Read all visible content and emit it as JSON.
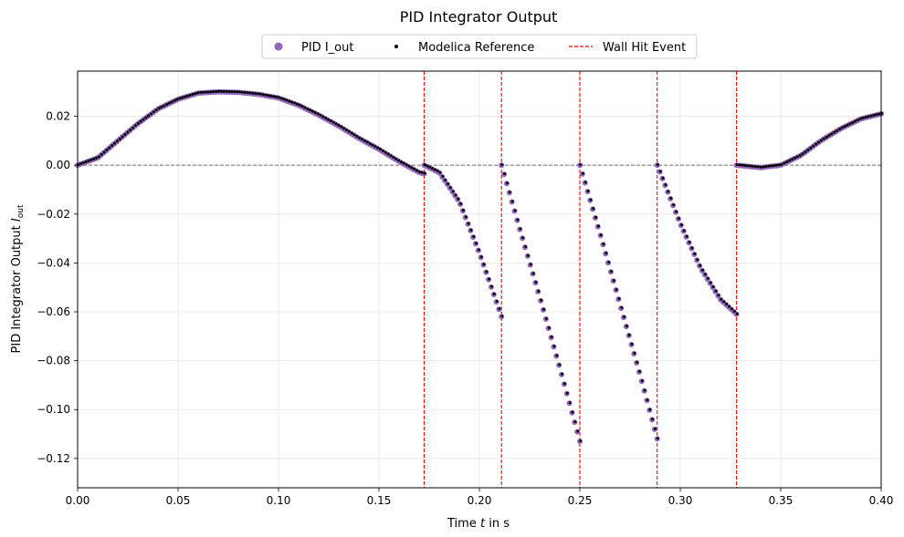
{
  "chart_data": {
    "type": "scatter",
    "title": "PID Integrator Output",
    "xlabel_prefix": "Time ",
    "xlabel_var": "t",
    "xlabel_suffix": " in s",
    "ylabel_prefix": "PID Integrator Output ",
    "ylabel_var": "I",
    "ylabel_sub": "out",
    "xlim": [
      0,
      0.4
    ],
    "ylim": [
      -0.132,
      0.0385
    ],
    "xticks": [
      0,
      0.05,
      0.1,
      0.15,
      0.2,
      0.25,
      0.3,
      0.35,
      0.4
    ],
    "xtick_labels": [
      "0.00",
      "0.05",
      "0.10",
      "0.15",
      "0.20",
      "0.25",
      "0.30",
      "0.35",
      "0.40"
    ],
    "yticks": [
      0.02,
      0.0,
      -0.02,
      -0.04,
      -0.06,
      -0.08,
      -0.1,
      -0.12
    ],
    "ytick_labels": [
      "0.02",
      "0.00",
      "−0.02",
      "−0.04",
      "−0.06",
      "−0.08",
      "−0.10",
      "−0.12"
    ],
    "grid": true,
    "legend_position": "top-center",
    "zero_line": 0,
    "series": [
      {
        "name": "PID I_out",
        "color": "#9467bd",
        "marker": "circle-large",
        "segments": [
          {
            "x": [
              0.0,
              0.01,
              0.02,
              0.03,
              0.04,
              0.05,
              0.06,
              0.07,
              0.08,
              0.09,
              0.1,
              0.11,
              0.12,
              0.13,
              0.14,
              0.15,
              0.16,
              0.17,
              0.1725
            ],
            "y": [
              0.0,
              0.003,
              0.01,
              0.017,
              0.023,
              0.027,
              0.0295,
              0.03,
              0.0298,
              0.029,
              0.0275,
              0.0245,
              0.0205,
              0.016,
              0.011,
              0.0065,
              0.0015,
              -0.003,
              -0.0035
            ]
          },
          {
            "x": [
              0.1725,
              0.18,
              0.19,
              0.2,
              0.211
            ],
            "y": [
              0.0,
              -0.003,
              -0.015,
              -0.036,
              -0.062
            ]
          },
          {
            "x": [
              0.211,
              0.22,
              0.23,
              0.24,
              0.25
            ],
            "y": [
              0.0,
              -0.026,
              -0.054,
              -0.083,
              -0.113
            ]
          },
          {
            "x": [
              0.25,
              0.26,
              0.27,
              0.28,
              0.2885
            ],
            "y": [
              0.0,
              -0.028,
              -0.057,
              -0.086,
              -0.112
            ]
          },
          {
            "x": [
              0.2885,
              0.3,
              0.31,
              0.32,
              0.328
            ],
            "y": [
              0.0,
              -0.024,
              -0.042,
              -0.055,
              -0.061
            ]
          },
          {
            "x": [
              0.328,
              0.34,
              0.35,
              0.36,
              0.37,
              0.38,
              0.39,
              0.4
            ],
            "y": [
              0.0,
              -0.001,
              0.0,
              0.004,
              0.01,
              0.015,
              0.019,
              0.021
            ]
          }
        ]
      },
      {
        "name": "Modelica Reference",
        "color": "#000000",
        "marker": "circle-small"
      },
      {
        "name": "Wall Hit Event",
        "color": "#ff0000",
        "style": "dashed",
        "x_events": [
          0.1725,
          0.211,
          0.25,
          0.2885,
          0.328
        ]
      }
    ]
  }
}
